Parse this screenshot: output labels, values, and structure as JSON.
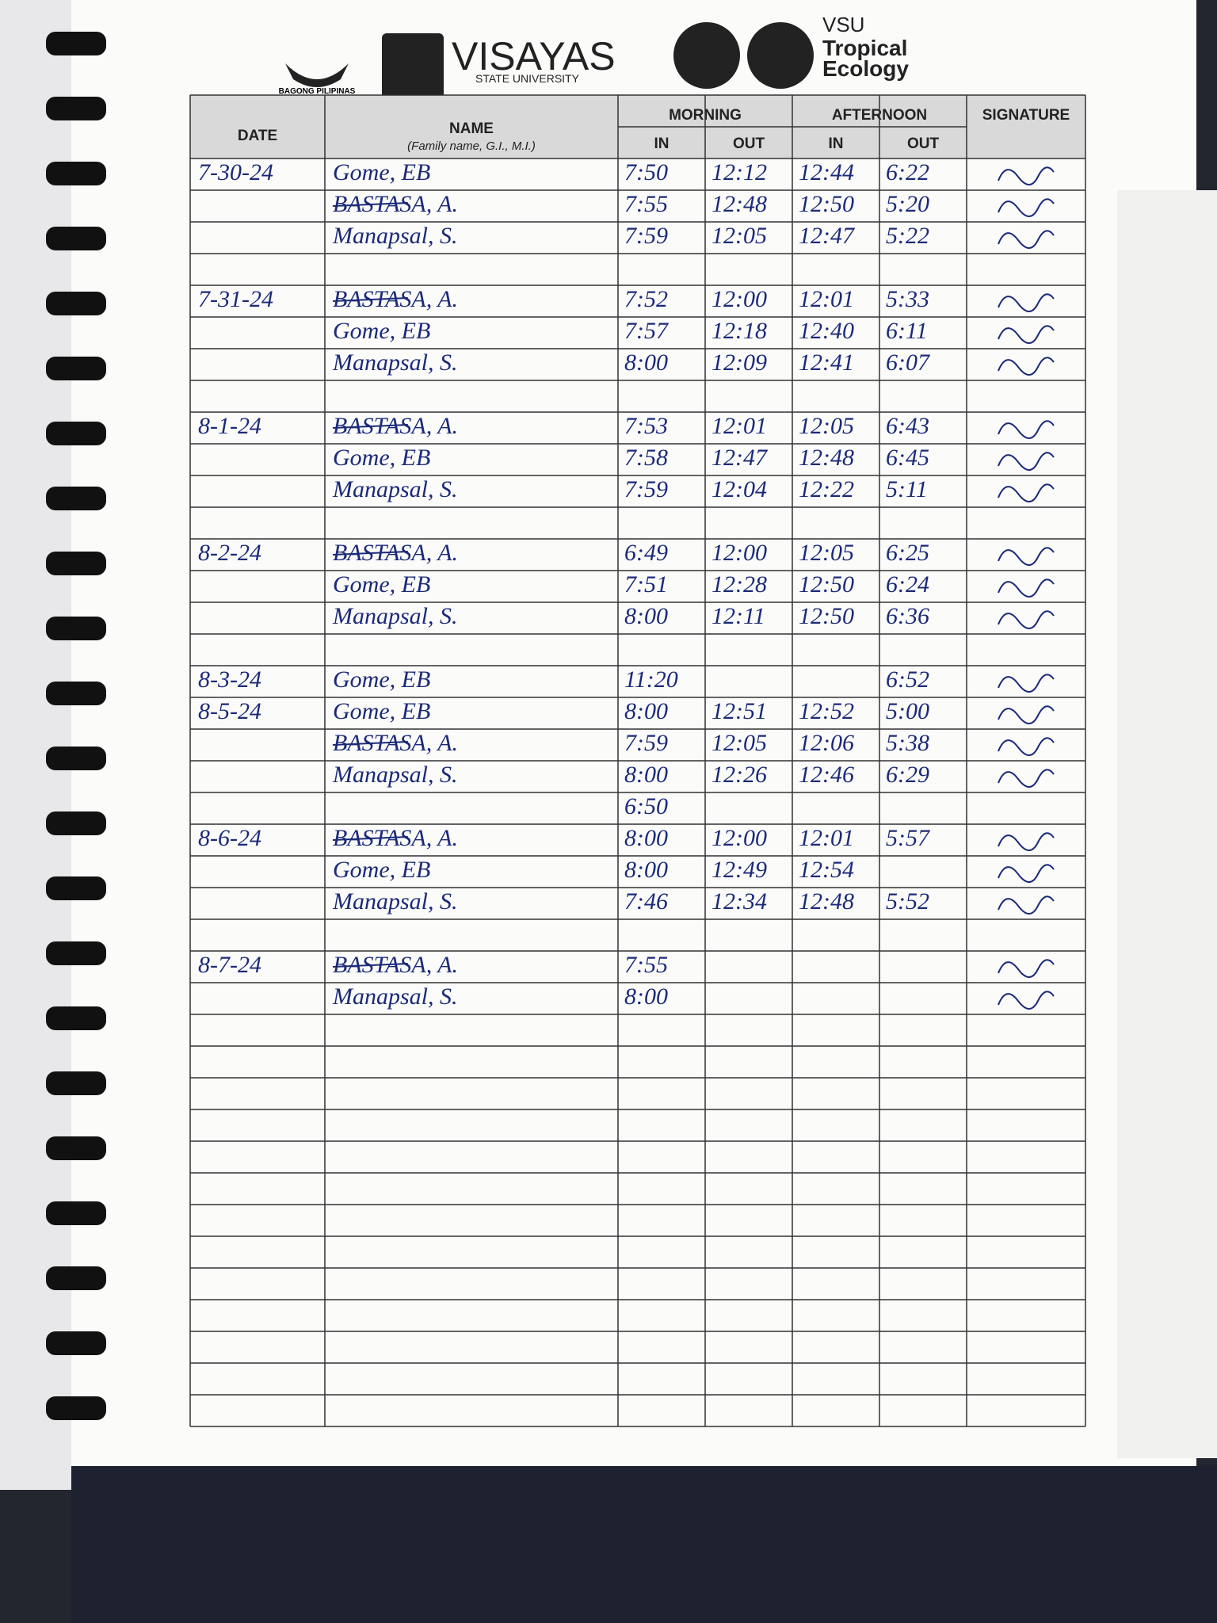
{
  "header": {
    "logo_left": "BAGONG PILIPINAS",
    "university": "VISAYAS",
    "university_sub": "STATE UNIVERSITY",
    "unit_top": "VSU",
    "unit_line1": "Tropical",
    "unit_line2": "Ecology"
  },
  "table": {
    "headers": {
      "date": "DATE",
      "name": "NAME",
      "name_sub": "(Family name, G.I., M.I.)",
      "morning": "MORNING",
      "afternoon": "AFTERNOON",
      "signature": "SIGNATURE",
      "am_in": "IN",
      "am_out": "OUT",
      "pm_in": "IN",
      "pm_out": "OUT"
    },
    "rows": [
      [
        "7-30-24",
        "Gome, EB",
        "7:50",
        "12:12",
        "12:44",
        "6:22"
      ],
      [
        null,
        "BASTASA, A.",
        "7:55",
        "12:48",
        "12:50",
        "5:20"
      ],
      [
        null,
        "Manapsal, S.",
        "7:59",
        "12:05",
        "12:47",
        "5:22"
      ],
      [
        null,
        null,
        null,
        null,
        null,
        null
      ],
      [
        "7-31-24",
        "BASTASA, A.",
        "7:52",
        "12:00",
        "12:01",
        "5:33"
      ],
      [
        null,
        "Gome, EB",
        "7:57",
        "12:18",
        "12:40",
        "6:11"
      ],
      [
        null,
        "Manapsal, S.",
        "8:00",
        "12:09",
        "12:41",
        "6:07"
      ],
      [
        null,
        null,
        null,
        null,
        null,
        null
      ],
      [
        "8-1-24",
        "BASTASA, A.",
        "7:53",
        "12:01",
        "12:05",
        "6:43"
      ],
      [
        null,
        "Gome, EB",
        "7:58",
        "12:47",
        "12:48",
        "6:45"
      ],
      [
        null,
        "Manapsal, S.",
        "7:59",
        "12:04",
        "12:22",
        "5:11"
      ],
      [
        null,
        null,
        null,
        null,
        null,
        null
      ],
      [
        "8-2-24",
        "BASTASA, A.",
        "6:49",
        "12:00",
        "12:05",
        "6:25"
      ],
      [
        null,
        "Gome, EB",
        "7:51",
        "12:28",
        "12:50",
        "6:24"
      ],
      [
        null,
        "Manapsal, S.",
        "8:00",
        "12:11",
        "12:50",
        "6:36"
      ],
      [
        null,
        null,
        null,
        null,
        null,
        null
      ],
      [
        "8-3-24",
        "Gome, EB",
        "11:20",
        null,
        null,
        "6:52"
      ],
      [
        "8-5-24",
        "Gome, EB",
        "8:00",
        "12:51",
        "12:52",
        "5:00"
      ],
      [
        null,
        "BASTASA, A.",
        "7:59",
        "12:05",
        "12:06",
        "5:38"
      ],
      [
        null,
        "Manapsal, S.",
        "8:00",
        "12:26",
        "12:46",
        "6:29"
      ],
      [
        null,
        null,
        "6:50",
        null,
        null,
        null
      ],
      [
        "8-6-24",
        "BASTASA, A.",
        "8:00",
        "12:00",
        "12:01",
        "5:57"
      ],
      [
        null,
        "Gome, EB",
        "8:00",
        "12:49",
        "12:54",
        null
      ],
      [
        null,
        "Manapsal, S.",
        "7:46",
        "12:34",
        "12:48",
        "5:52"
      ],
      [
        null,
        null,
        null,
        null,
        null,
        null
      ],
      [
        "8-7-24",
        "BASTASA, A.",
        "7:55",
        null,
        null,
        null
      ],
      [
        null,
        "Manapsal, S.",
        "8:00",
        null,
        null,
        null
      ]
    ]
  }
}
